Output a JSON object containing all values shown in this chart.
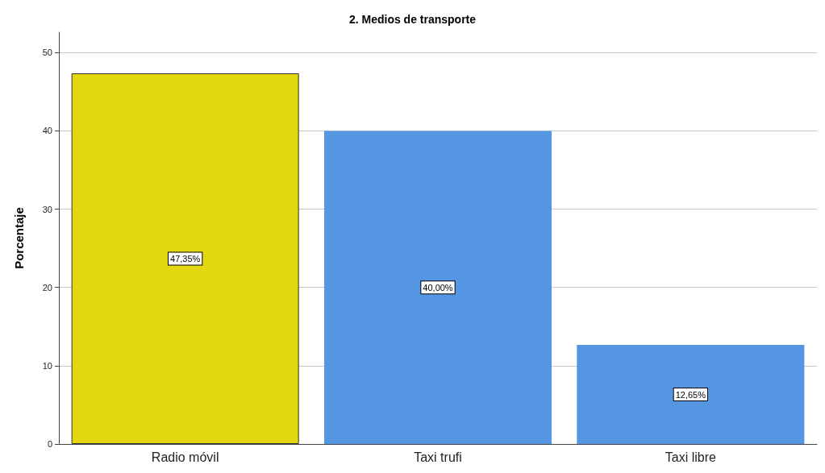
{
  "chart_data": {
    "type": "bar",
    "title": "2. Medios de transporte",
    "ylabel": "Porcentaje",
    "categories": [
      "Radio móvil",
      "Taxi trufi",
      "Taxi libre"
    ],
    "values": [
      47.35,
      40.0,
      12.65
    ],
    "colors": [
      "#e3d70f",
      "#5596e3",
      "#5596e3"
    ],
    "value_labels": [
      "47,35%",
      "40,00%",
      "12,65%"
    ],
    "ylim": [
      0,
      52.6
    ],
    "yticks": [
      0,
      10,
      20,
      30,
      40,
      50
    ],
    "grid": "y"
  }
}
